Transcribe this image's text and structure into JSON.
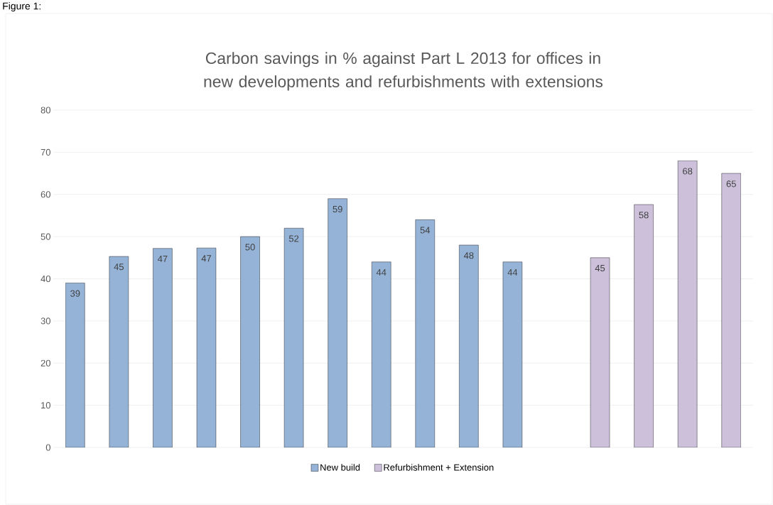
{
  "chart_data": {
    "type": "bar",
    "title": "Carbon savings in % against Part L 2013 for offices in new developments and refurbishments with extensions",
    "annotations": [
      "Figure 1:"
    ],
    "categories": [
      null,
      null,
      null,
      null,
      null,
      null,
      null,
      null,
      null,
      null,
      null,
      null,
      null,
      null,
      null,
      null
    ],
    "series": [
      {
        "name": "New build",
        "color": "#95b3d7",
        "values": [
          39,
          45.3,
          47.2,
          47.3,
          50,
          52,
          59,
          44,
          54,
          48,
          44,
          null,
          null,
          null,
          null,
          null
        ],
        "value_labels": [
          "39",
          "45",
          "47",
          "47",
          "50",
          "52",
          "59",
          "44",
          "54",
          "48",
          "44",
          null,
          null,
          null,
          null,
          null
        ]
      },
      {
        "name": "Refurbishment + Extension",
        "color": "#ccc0da",
        "values": [
          null,
          null,
          null,
          null,
          null,
          null,
          null,
          null,
          null,
          null,
          null,
          null,
          45,
          57.6,
          68,
          65
        ],
        "value_labels": [
          null,
          null,
          null,
          null,
          null,
          null,
          null,
          null,
          null,
          null,
          null,
          null,
          "45",
          "58",
          "68",
          "65"
        ]
      }
    ],
    "ylim": [
      0,
      80
    ],
    "yticks": [
      0,
      10,
      20,
      30,
      40,
      50,
      60,
      70,
      80
    ],
    "grid": "y",
    "legend": "bottom"
  }
}
